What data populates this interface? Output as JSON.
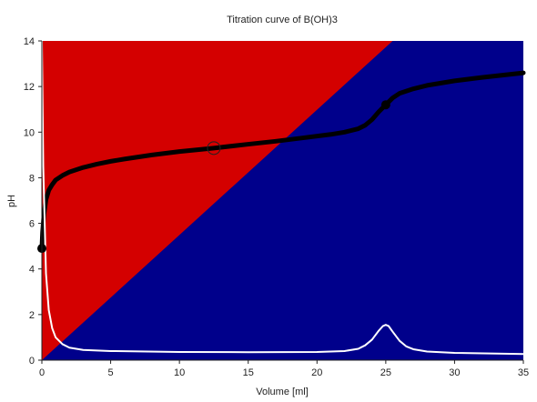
{
  "chart_data": {
    "type": "line",
    "title": "Titration curve of B(OH)3",
    "xlabel": "Volume [ml]",
    "ylabel": "pH",
    "xlim": [
      0,
      35
    ],
    "ylim": [
      0,
      14
    ],
    "xticks": [
      0,
      5,
      10,
      15,
      20,
      25,
      30,
      35
    ],
    "yticks": [
      0,
      2,
      4,
      6,
      8,
      10,
      12,
      14
    ],
    "grid": false,
    "legend": "none",
    "background_regions": [
      {
        "label": "upper-left region",
        "color": "#d40000",
        "boundary": [
          [
            0,
            0
          ],
          [
            25.5,
            14
          ]
        ]
      },
      {
        "label": "lower-right region",
        "color": "#00008b"
      }
    ],
    "series": [
      {
        "color": "#000000",
        "style": "thick",
        "x": [
          0,
          0.05,
          0.15,
          0.3,
          0.5,
          0.75,
          1,
          1.5,
          2,
          3,
          4,
          5,
          6,
          8,
          10,
          12.5,
          15,
          17,
          19,
          21,
          22,
          23,
          23.5,
          24,
          24.5,
          25,
          25.5,
          26,
          27,
          28,
          30,
          32,
          35
        ],
        "y": [
          4.9,
          5.6,
          6.4,
          7.05,
          7.45,
          7.7,
          7.9,
          8.1,
          8.25,
          8.45,
          8.6,
          8.72,
          8.82,
          9.0,
          9.15,
          9.3,
          9.47,
          9.6,
          9.75,
          9.9,
          10.0,
          10.15,
          10.3,
          10.55,
          10.9,
          11.2,
          11.5,
          11.7,
          11.9,
          12.05,
          12.25,
          12.4,
          12.6
        ]
      },
      {
        "color": "#ffffff",
        "style": "thin",
        "x": [
          0,
          0.1,
          0.3,
          0.5,
          0.75,
          1,
          1.5,
          2,
          3,
          5,
          10,
          15,
          20,
          22,
          23,
          23.5,
          24,
          24.5,
          24.8,
          25,
          25.2,
          25.5,
          26,
          26.5,
          27,
          28,
          30,
          35
        ],
        "y": [
          14,
          8.5,
          3.8,
          2.2,
          1.4,
          1.0,
          0.7,
          0.55,
          0.45,
          0.4,
          0.36,
          0.35,
          0.36,
          0.4,
          0.5,
          0.65,
          0.9,
          1.3,
          1.5,
          1.55,
          1.5,
          1.25,
          0.85,
          0.6,
          0.48,
          0.38,
          0.32,
          0.27
        ]
      }
    ],
    "markers": [
      {
        "x": 0,
        "y": 4.9,
        "style": "filled"
      },
      {
        "x": 12.5,
        "y": 9.3,
        "style": "hollow"
      },
      {
        "x": 25,
        "y": 11.2,
        "style": "filled"
      }
    ]
  }
}
